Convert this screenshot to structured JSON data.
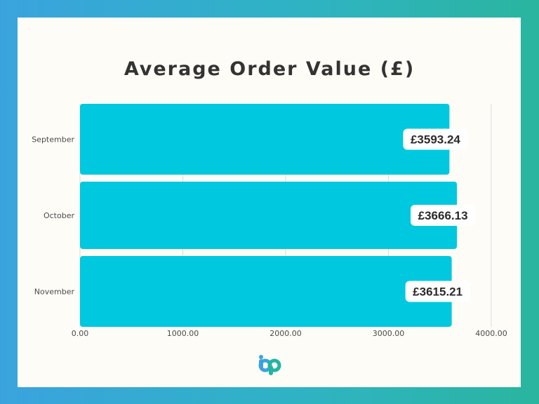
{
  "chart_data": {
    "type": "bar",
    "orientation": "horizontal",
    "title": "Average Order Value (£)",
    "categories": [
      "September",
      "October",
      "November"
    ],
    "values": [
      3593.24,
      3666.13,
      3615.21
    ],
    "data_labels": [
      "£3593.24",
      "£3666.13",
      "£3615.21"
    ],
    "xlim": [
      0,
      4000
    ],
    "x_ticks": [
      0,
      1000,
      2000,
      3000,
      4000
    ],
    "x_tick_labels": [
      "0.00",
      "1000.00",
      "2000.00",
      "3000.00",
      "4000.00"
    ],
    "grid": true,
    "bar_color": "#00c8de"
  },
  "colors": {
    "background_gradient": [
      "#3aa3de",
      "#2ab59f"
    ],
    "card": "#fdfcf7",
    "logo_blue": "#3aa3de",
    "logo_green": "#22b5a0"
  },
  "logo": {
    "icon": "bp-logo-icon"
  }
}
